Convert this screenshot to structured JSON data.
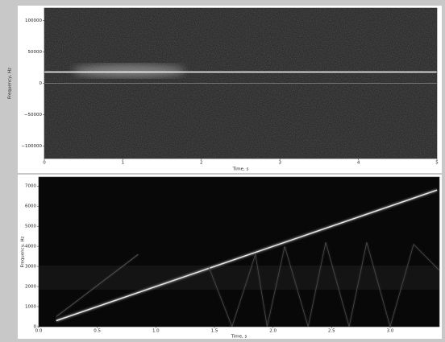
{
  "chart_data": [
    {
      "type": "spectrogram",
      "xlabel": "Time, s",
      "ylabel": "Frequency, Hz",
      "xlim": [
        0,
        5
      ],
      "xticks": [
        0,
        1,
        2,
        3,
        4,
        5
      ],
      "ylim": [
        -120000,
        120000
      ],
      "yticks": [
        {
          "value": -100000,
          "label": "−100000"
        },
        {
          "value": -50000,
          "label": "−50000"
        },
        0,
        50000,
        100000
      ],
      "lines": [
        {
          "color": "#ffffff",
          "x": [
            0,
            5
          ],
          "values": [
            18000,
            18000
          ]
        },
        {
          "color": "#8a8a8a",
          "x": [
            0,
            5
          ],
          "values": [
            0,
            0
          ]
        }
      ]
    },
    {
      "type": "spectrogram",
      "xlabel": "Time, s",
      "ylabel": "Frequency, Hz",
      "xlim": [
        0,
        3.42
      ],
      "xticks": [
        {
          "value": 0,
          "label": "0.0"
        },
        0.5,
        {
          "value": 1,
          "label": "1.0"
        },
        1.5,
        {
          "value": 2,
          "label": "2.0"
        },
        2.5,
        {
          "value": 3,
          "label": "3.0"
        }
      ],
      "ylim": [
        0,
        7450
      ],
      "yticks": [
        0,
        1000,
        2000,
        3000,
        4000,
        5000,
        6000,
        7000
      ],
      "lines": [
        {
          "color": "#e8e8e8",
          "x": [
            0.15,
            3.4
          ],
          "values": [
            300,
            6800
          ]
        },
        {
          "color": "#5a5a5a",
          "x": [
            0.15,
            0.85
          ],
          "values": [
            500,
            3600
          ]
        },
        {
          "color": "#4a4a4a",
          "x": [
            1.45,
            1.65,
            1.85,
            1.95,
            2.1,
            2.3,
            2.45,
            2.65,
            2.8,
            3.0,
            3.2,
            3.42
          ],
          "values": [
            3000,
            0,
            3600,
            0,
            4000,
            0,
            4200,
            0,
            4200,
            0,
            4100,
            2800
          ]
        }
      ]
    }
  ]
}
